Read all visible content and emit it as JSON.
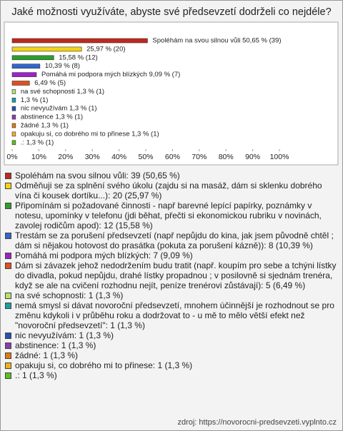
{
  "chart_data": {
    "type": "hbar",
    "title": "Jaké možnosti využíváte, abyste své předsevzetí dodrželi co nejdéle?",
    "categories": [
      "Spoléhám na svou silnou vůli: 39 (50,65 %)",
      "Odměňuji se za splnění svého úkolu (zajdu si na masáž, dám si sklenku dobrého vína či kousek dortíku...): 20 (25,97 %)",
      "Připomínám si požadované činnosti - např barevné lepící papírky, poznámky v notesu, upomínky v telefonu (jdi běhat, přečti si ekonomickou rubriku v novinách, zavolej rodičům apod): 12 (15,58 %)",
      "Trestám se za porušení předsevzetí (např nepůjdu do kina, jak jsem původně chtěl ; dám si nějakou hotovost do prasátka (pokuta za porušení kázně)): 8 (10,39 %)",
      "Pomáhá mi podpora mých blízkých: 7 (9,09 %)",
      "Dám si závazek jehož nedodržením budu tratit (např. koupím pro sebe a tchýni lístky do divadla, pokud nepůjdu, drahé lístky propadnou ; v posilovně si sjednám trenéra, když se ale na cvičení rozhodnu nejít, peníze trenérovi zůstávají): 5 (6,49 %)",
      "na své schopnosti: 1 (1,3 %)",
      "nemá smysl si dávat novoroční předsevzetí, mnohem účinnější je rozhodnout se pro změnu kdykoli i v průběhu roku a dodržovat to - u mě to mělo větší efekt než \"novoroční předsevzetí\": 1 (1,3 %)",
      "nic nevyužívám: 1 (1,3 %)",
      "abstinence: 1 (1,3 %)",
      "žádné: 1 (1,3 %)",
      "opakuju si, co dobrého mi to přinese: 1 (1,3 %)",
      ".: 1 (1,3 %)"
    ],
    "values": [
      50.65,
      25.97,
      15.58,
      10.39,
      9.09,
      6.49,
      1.3,
      1.3,
      1.3,
      1.3,
      1.3,
      1.3,
      1.3
    ],
    "value_labels": [
      "Spoléhám na svou silnou vůli 50,65 % (39)",
      "25,97 % (20)",
      "15,58 % (12)",
      "10,39 % (8)",
      "Pomáhá mi podpora mých blízkých 9,09 % (7)",
      "6,49 % (5)",
      "na své schopnosti 1,3 % (1)",
      "1,3 % (1)",
      "nic nevyužívám 1,3 % (1)",
      "abstinence 1,3 % (1)",
      "žádné 1,3 % (1)",
      "opakuju si, co dobrého mi to přinese 1,3 % (1)",
      ".: 1,3 % (1)"
    ],
    "colors": [
      "#c0281c",
      "#f5d312",
      "#2e9e2e",
      "#3366cc",
      "#a020c8",
      "#e0501c",
      "#b6e070",
      "#17a0a0",
      "#2850b0",
      "#8a3cb0",
      "#e07a10",
      "#f0b020",
      "#5cc020"
    ],
    "xlim": [
      0,
      100
    ],
    "xticks": [
      {
        "value": 0,
        "label": "0%"
      },
      {
        "value": 10,
        "label": "10%"
      },
      {
        "value": 20,
        "label": "20%"
      },
      {
        "value": 30,
        "label": "30%"
      },
      {
        "value": 40,
        "label": "40%"
      },
      {
        "value": 50,
        "label": "50%"
      },
      {
        "value": 60,
        "label": "60%"
      },
      {
        "value": 70,
        "label": "70%"
      },
      {
        "value": 80,
        "label": "80%"
      },
      {
        "value": 90,
        "label": "90%"
      },
      {
        "value": 100,
        "label": "100%"
      }
    ],
    "source": "zdroj: https://novorocni-predsevzeti.vyplnto.cz"
  }
}
